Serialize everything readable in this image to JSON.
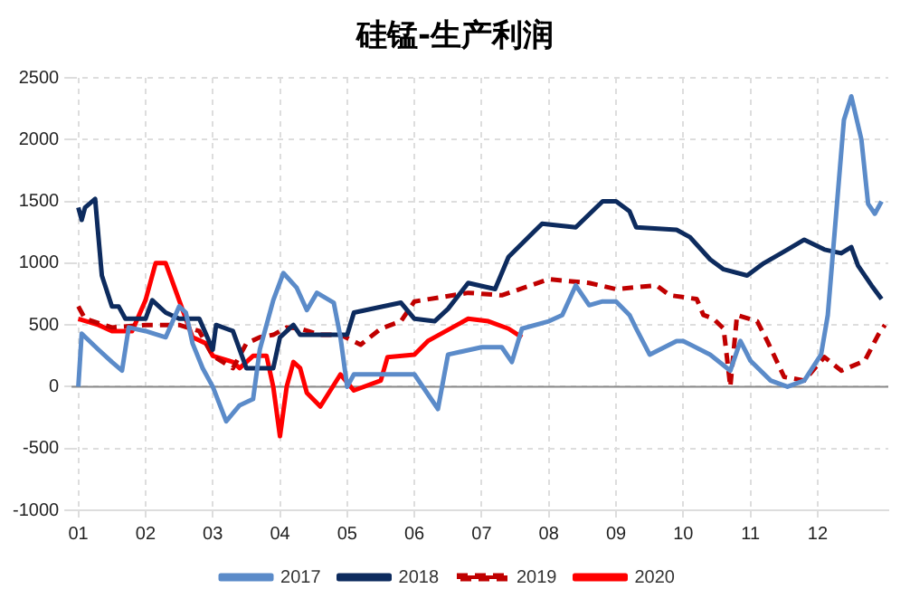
{
  "chart_data": {
    "type": "line",
    "title": "硅锰-生产利润",
    "xlim": [
      0.9,
      13.05
    ],
    "ylim": [
      -1000,
      2500
    ],
    "xticks": [
      {
        "value": 1,
        "label": "01"
      },
      {
        "value": 2,
        "label": "02"
      },
      {
        "value": 3,
        "label": "03"
      },
      {
        "value": 4,
        "label": "04"
      },
      {
        "value": 5,
        "label": "05"
      },
      {
        "value": 6,
        "label": "06"
      },
      {
        "value": 7,
        "label": "07"
      },
      {
        "value": 8,
        "label": "08"
      },
      {
        "value": 9,
        "label": "09"
      },
      {
        "value": 10,
        "label": "10"
      },
      {
        "value": 11,
        "label": "11"
      },
      {
        "value": 12,
        "label": "12"
      }
    ],
    "yticks": [
      -1000,
      -500,
      0,
      500,
      1000,
      1500,
      2000,
      2500
    ],
    "grid": true,
    "legend": "bottom",
    "ref_lines": [
      {
        "axis": "y",
        "value": 0,
        "color": "#888888"
      }
    ],
    "marker": "none",
    "series": [
      {
        "name": "2017",
        "color": "#5b8bc9",
        "line_style": "solid",
        "x": [
          1.0,
          1.05,
          1.3,
          1.5,
          1.65,
          1.75,
          2.0,
          2.3,
          2.5,
          2.6,
          2.7,
          2.85,
          3.0,
          3.2,
          3.4,
          3.6,
          3.7,
          3.9,
          4.05,
          4.25,
          4.4,
          4.55,
          4.8,
          4.9,
          5.0,
          5.1,
          5.3,
          5.6,
          6.0,
          6.35,
          6.5,
          7.0,
          7.3,
          7.45,
          7.6,
          8.0,
          8.2,
          8.4,
          8.6,
          8.8,
          9.0,
          9.2,
          9.3,
          9.5,
          9.9,
          10.0,
          10.4,
          10.7,
          10.85,
          11.0,
          11.3,
          11.55,
          11.8,
          12.05,
          12.15,
          12.39,
          12.5,
          12.65,
          12.75,
          12.85,
          12.95
        ],
        "values": [
          0,
          430,
          300,
          200,
          130,
          480,
          450,
          400,
          650,
          600,
          350,
          150,
          0,
          -280,
          -150,
          -100,
          300,
          700,
          920,
          800,
          620,
          760,
          680,
          400,
          0,
          100,
          100,
          100,
          100,
          -180,
          260,
          320,
          320,
          200,
          470,
          530,
          580,
          820,
          660,
          690,
          690,
          580,
          470,
          260,
          370,
          370,
          260,
          130,
          370,
          210,
          50,
          0,
          50,
          260,
          580,
          2160,
          2350,
          2000,
          1480,
          1400,
          1500
        ]
      },
      {
        "name": "2018",
        "color": "#0d2b5e",
        "line_style": "solid",
        "x": [
          1.0,
          1.05,
          1.1,
          1.25,
          1.35,
          1.5,
          1.6,
          1.7,
          2.0,
          2.1,
          2.3,
          2.5,
          2.8,
          3.0,
          3.05,
          3.3,
          3.5,
          3.9,
          4.0,
          4.2,
          4.3,
          5.0,
          5.1,
          5.8,
          6.0,
          6.3,
          6.5,
          6.8,
          7.2,
          7.4,
          7.9,
          8.4,
          8.8,
          9.0,
          9.2,
          9.3,
          9.9,
          10.1,
          10.4,
          10.6,
          10.95,
          11.2,
          11.55,
          11.8,
          12.1,
          12.35,
          12.5,
          12.6,
          12.8,
          12.95
        ],
        "values": [
          1450,
          1350,
          1450,
          1520,
          900,
          650,
          650,
          550,
          550,
          700,
          600,
          550,
          550,
          300,
          500,
          450,
          150,
          150,
          400,
          500,
          420,
          420,
          600,
          680,
          550,
          530,
          630,
          840,
          790,
          1050,
          1320,
          1290,
          1500,
          1500,
          1420,
          1290,
          1270,
          1210,
          1030,
          950,
          900,
          1000,
          1110,
          1190,
          1110,
          1080,
          1130,
          980,
          820,
          710
        ]
      },
      {
        "name": "2019",
        "color": "#c00000",
        "line_style": "dashed",
        "x": [
          1.0,
          1.1,
          1.5,
          2.0,
          2.5,
          2.8,
          3.0,
          3.3,
          3.5,
          3.7,
          3.9,
          4.1,
          4.3,
          4.6,
          4.9,
          5.2,
          5.5,
          5.8,
          6.0,
          6.8,
          7.3,
          8.0,
          8.6,
          9.0,
          9.6,
          9.8,
          10.2,
          10.3,
          10.45,
          10.6,
          10.7,
          10.8,
          11.1,
          11.25,
          11.5,
          11.8,
          12.1,
          12.35,
          12.7,
          12.9,
          13.0
        ],
        "values": [
          650,
          550,
          480,
          500,
          500,
          450,
          250,
          150,
          350,
          400,
          420,
          480,
          470,
          420,
          420,
          340,
          470,
          530,
          690,
          760,
          740,
          870,
          840,
          790,
          820,
          740,
          710,
          580,
          550,
          470,
          0,
          580,
          530,
          370,
          80,
          50,
          240,
          130,
          210,
          420,
          500
        ]
      },
      {
        "name": "2020",
        "color": "#ff0000",
        "line_style": "solid",
        "x": [
          1.0,
          1.3,
          1.5,
          1.8,
          2.0,
          2.15,
          2.3,
          2.5,
          2.7,
          2.9,
          3.0,
          3.3,
          3.4,
          3.6,
          3.8,
          3.9,
          4.0,
          4.1,
          4.2,
          4.3,
          4.4,
          4.6,
          4.9,
          5.1,
          5.5,
          5.6,
          6.0,
          6.2,
          6.8,
          7.1,
          7.4,
          7.6
        ],
        "values": [
          550,
          500,
          450,
          450,
          700,
          1000,
          1000,
          700,
          400,
          350,
          250,
          200,
          150,
          250,
          250,
          0,
          -400,
          0,
          200,
          150,
          -50,
          -160,
          100,
          -30,
          50,
          240,
          260,
          370,
          550,
          530,
          470,
          400
        ]
      }
    ]
  }
}
